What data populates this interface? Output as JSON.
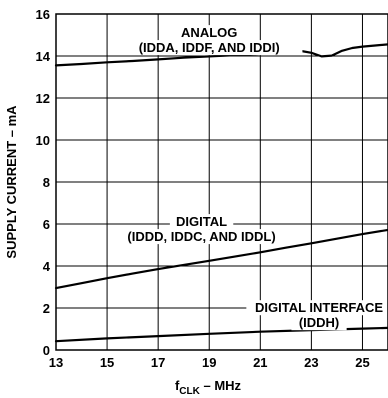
{
  "chart_data": {
    "type": "line",
    "xlabel": "",
    "xlabel_main": "f",
    "xlabel_sub": "CLK",
    "xlabel_suffix": " – MHz",
    "ylabel": "SUPPLY CURRENT – mA",
    "xlim": [
      13,
      26
    ],
    "ylim": [
      0,
      16
    ],
    "xticks": [
      13,
      15,
      17,
      19,
      21,
      23,
      25
    ],
    "yticks": [
      0,
      2,
      4,
      6,
      8,
      10,
      12,
      14,
      16
    ],
    "grid": true,
    "series": [
      {
        "name": "",
        "x": [
          13,
          14,
          15,
          16,
          17,
          18,
          19,
          20,
          21,
          22,
          22.6,
          23,
          23.4,
          23.8,
          24.2,
          24.6,
          25,
          25.5,
          26
        ],
        "values": [
          13.55,
          13.62,
          13.7,
          13.76,
          13.84,
          13.92,
          13.98,
          14.04,
          14.1,
          14.18,
          14.24,
          14.15,
          13.98,
          14.02,
          14.25,
          14.38,
          14.45,
          14.5,
          14.55
        ]
      },
      {
        "name": "",
        "x": [
          13,
          14,
          15,
          16,
          17,
          18,
          19,
          20,
          21,
          22,
          23,
          24,
          25,
          26
        ],
        "values": [
          2.95,
          3.18,
          3.42,
          3.64,
          3.85,
          4.05,
          4.25,
          4.45,
          4.65,
          4.87,
          5.08,
          5.3,
          5.52,
          5.72
        ]
      },
      {
        "name": "",
        "x": [
          13,
          15,
          17,
          19,
          21,
          23,
          25,
          26
        ],
        "values": [
          0.42,
          0.55,
          0.66,
          0.77,
          0.87,
          0.95,
          1.02,
          1.05
        ]
      }
    ],
    "annotations": [
      {
        "lines": [
          "ANALOG",
          "(IDDA, IDDF, AND IDDI)"
        ],
        "at": [
          19,
          14.9
        ]
      },
      {
        "lines": [
          "DIGITAL",
          "(IDDD, IDDC, AND IDDL)"
        ],
        "at": [
          18.7,
          5.9
        ]
      },
      {
        "lines": [
          "DIGITAL INTERFACE",
          "(IDDH)"
        ],
        "at": [
          23.3,
          1.8
        ]
      }
    ]
  }
}
